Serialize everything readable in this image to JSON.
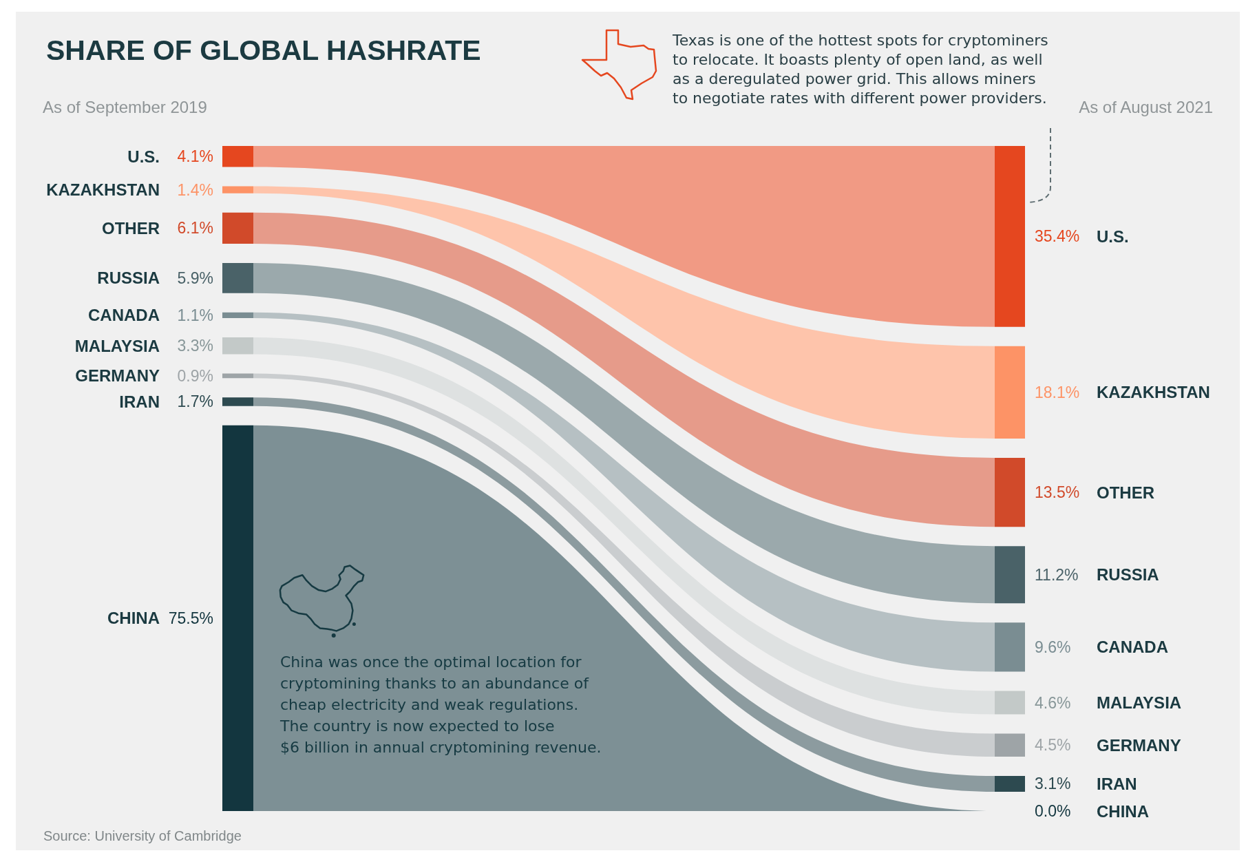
{
  "chart_data": {
    "type": "other",
    "title": "SHARE OF GLOBAL HASHRATE",
    "categories": [
      "U.S.",
      "KAZAKHSTAN",
      "OTHER",
      "RUSSIA",
      "CANADA",
      "MALAYSIA",
      "GERMANY",
      "IRAN",
      "CHINA"
    ],
    "colors": [
      "#e5471f",
      "#fd9366",
      "#d14a2a",
      "#4a6268",
      "#7a8d92",
      "#c3c9c8",
      "#9ea4a7",
      "#2d4a50",
      "#13363f"
    ],
    "series": [
      {
        "name": "As of September 2019",
        "values": [
          4.1,
          1.4,
          6.1,
          5.9,
          1.1,
          3.3,
          0.9,
          1.7,
          75.5
        ],
        "value_labels": [
          "4.1%",
          "1.4%",
          "6.1%",
          "5.9%",
          "1.1%",
          "3.3%",
          "0.9%",
          "1.7%",
          "75.5%"
        ]
      },
      {
        "name": "As of August 2021",
        "values": [
          35.4,
          18.1,
          13.5,
          11.2,
          9.6,
          4.6,
          4.5,
          3.1,
          0.0
        ],
        "value_labels": [
          "35.4%",
          "18.1%",
          "13.5%",
          "11.2%",
          "9.6%",
          "4.6%",
          "4.5%",
          "3.1%",
          "0.0%"
        ]
      }
    ],
    "annotations": [
      "Texas is one of the hottest spots for cryptominers\nto relocate. It boasts plenty of open land, as well\nas a deregulated power grid. This allows miners\nto negotiate rates with different power providers.",
      "China was once the optimal location for\ncryptomining thanks to an abundance of\ncheap electricity and weak regulations.\nThe country is now expected to lose\n$6 billion in annual cryptomining revenue.",
      "Source: University of Cambridge"
    ]
  }
}
